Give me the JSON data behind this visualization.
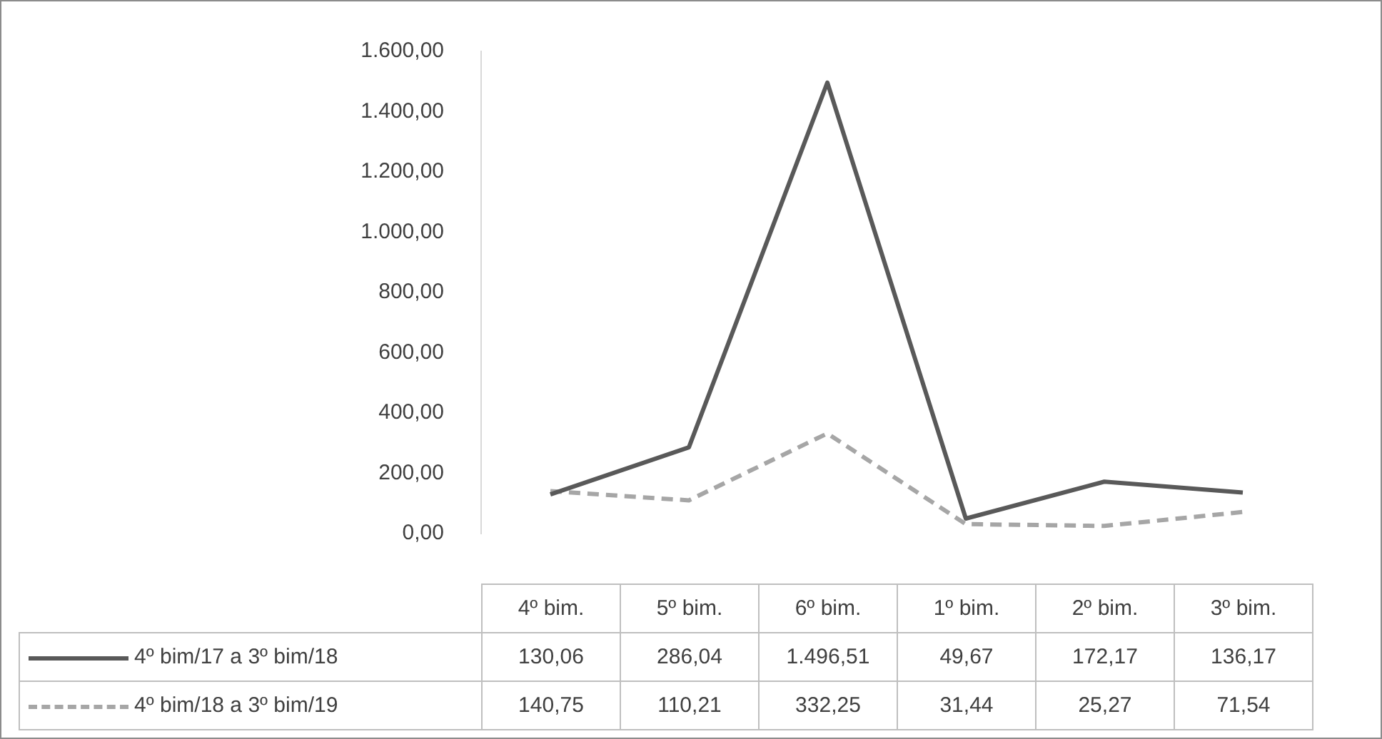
{
  "chart_data": {
    "type": "line",
    "categories": [
      "4º bim.",
      "5º bim.",
      "6º bim.",
      "1º bim.",
      "2º bim.",
      "3º bim."
    ],
    "series": [
      {
        "name": "4º bim/17 a 3º bim/18",
        "color": "#595959",
        "line_style": "solid",
        "values": [
          130.06,
          286.04,
          1496.51,
          49.67,
          172.17,
          136.17
        ],
        "value_labels": [
          "130,06",
          "286,04",
          "1.496,51",
          "49,67",
          "172,17",
          "136,17"
        ]
      },
      {
        "name": "4º bim/18 a 3º bim/19",
        "color": "#a6a6a6",
        "line_style": "dashed",
        "values": [
          140.75,
          110.21,
          332.25,
          31.44,
          25.27,
          71.54
        ],
        "value_labels": [
          "140,75",
          "110,21",
          "332,25",
          "31,44",
          "25,27",
          "71,54"
        ]
      }
    ],
    "ylim": [
      0,
      1600
    ],
    "yticks": [
      {
        "value": 0,
        "label": "0,00"
      },
      {
        "value": 200,
        "label": "200,00"
      },
      {
        "value": 400,
        "label": "400,00"
      },
      {
        "value": 600,
        "label": "600,00"
      },
      {
        "value": 800,
        "label": "800,00"
      },
      {
        "value": 1000,
        "label": "1.000,00"
      },
      {
        "value": 1200,
        "label": "1.200,00"
      },
      {
        "value": 1400,
        "label": "1.400,00"
      },
      {
        "value": 1600,
        "label": "1.600,00"
      }
    ],
    "grid": false,
    "legend": "bottom",
    "marker": "none"
  }
}
